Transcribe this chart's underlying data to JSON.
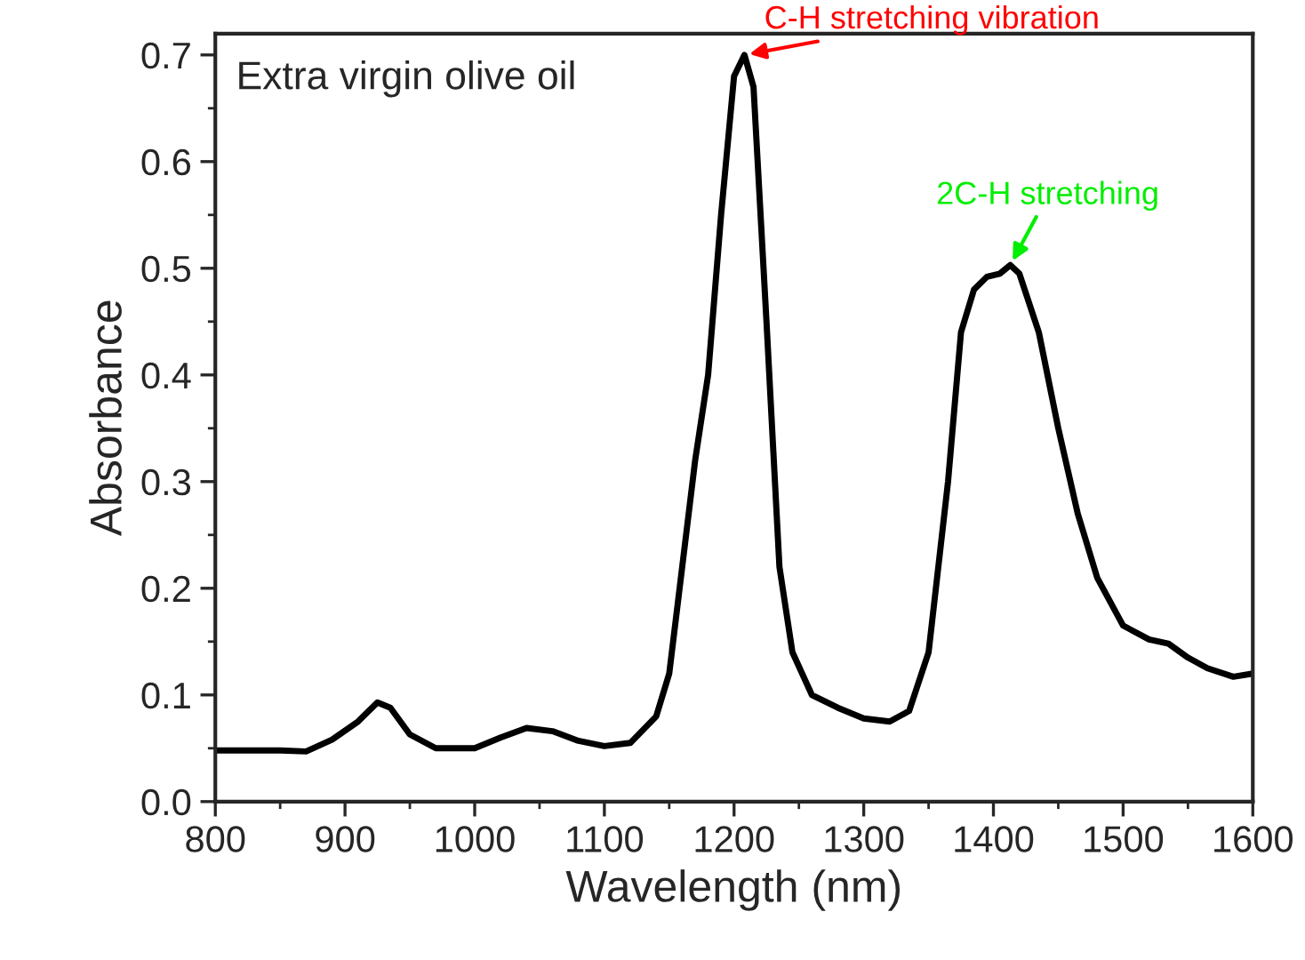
{
  "chart_data": {
    "type": "line",
    "title": "Extra virgin olive oil",
    "xlabel": "Wavelength (nm)",
    "ylabel": "Absorbance",
    "x": [
      800,
      850,
      870,
      890,
      910,
      925,
      935,
      950,
      970,
      1000,
      1020,
      1040,
      1060,
      1080,
      1100,
      1120,
      1140,
      1150,
      1160,
      1170,
      1180,
      1190,
      1200,
      1208,
      1215,
      1225,
      1235,
      1245,
      1260,
      1280,
      1300,
      1320,
      1335,
      1350,
      1365,
      1375,
      1385,
      1395,
      1405,
      1413,
      1420,
      1435,
      1450,
      1465,
      1480,
      1500,
      1520,
      1535,
      1550,
      1565,
      1585,
      1600
    ],
    "series": [
      {
        "color": "#000000",
        "values": [
          0.048,
          0.048,
          0.047,
          0.058,
          0.075,
          0.093,
          0.088,
          0.063,
          0.05,
          0.05,
          0.06,
          0.069,
          0.066,
          0.057,
          0.052,
          0.055,
          0.08,
          0.12,
          0.22,
          0.32,
          0.4,
          0.55,
          0.68,
          0.7,
          0.67,
          0.45,
          0.22,
          0.14,
          0.1,
          0.088,
          0.078,
          0.075,
          0.085,
          0.14,
          0.3,
          0.44,
          0.48,
          0.492,
          0.495,
          0.503,
          0.495,
          0.44,
          0.35,
          0.27,
          0.21,
          0.165,
          0.152,
          0.148,
          0.135,
          0.125,
          0.117,
          0.12
        ]
      }
    ],
    "annotations": [
      {
        "text": "C-H stretching vibration",
        "x": 1208,
        "y": 0.7
      },
      {
        "text": "2C-H stretching",
        "x": 1413,
        "y": 0.503
      }
    ],
    "xlim": [
      800,
      1600
    ],
    "xticks": [
      800,
      900,
      1000,
      1100,
      1200,
      1300,
      1400,
      1500,
      1600
    ],
    "ylim": [
      0,
      0.72
    ],
    "yticks": [
      {
        "value": 0,
        "label": "0.0"
      },
      {
        "value": 0.1,
        "label": "0.1"
      },
      {
        "value": 0.2,
        "label": "0.2"
      },
      {
        "value": 0.3,
        "label": "0.3"
      },
      {
        "value": 0.4,
        "label": "0.4"
      },
      {
        "value": 0.5,
        "label": "0.5"
      },
      {
        "value": 0.6,
        "label": "0.6"
      },
      {
        "value": 0.7,
        "label": "0.7"
      }
    ],
    "grid": false,
    "legend": false,
    "marker": "none",
    "line_style": "solid"
  }
}
